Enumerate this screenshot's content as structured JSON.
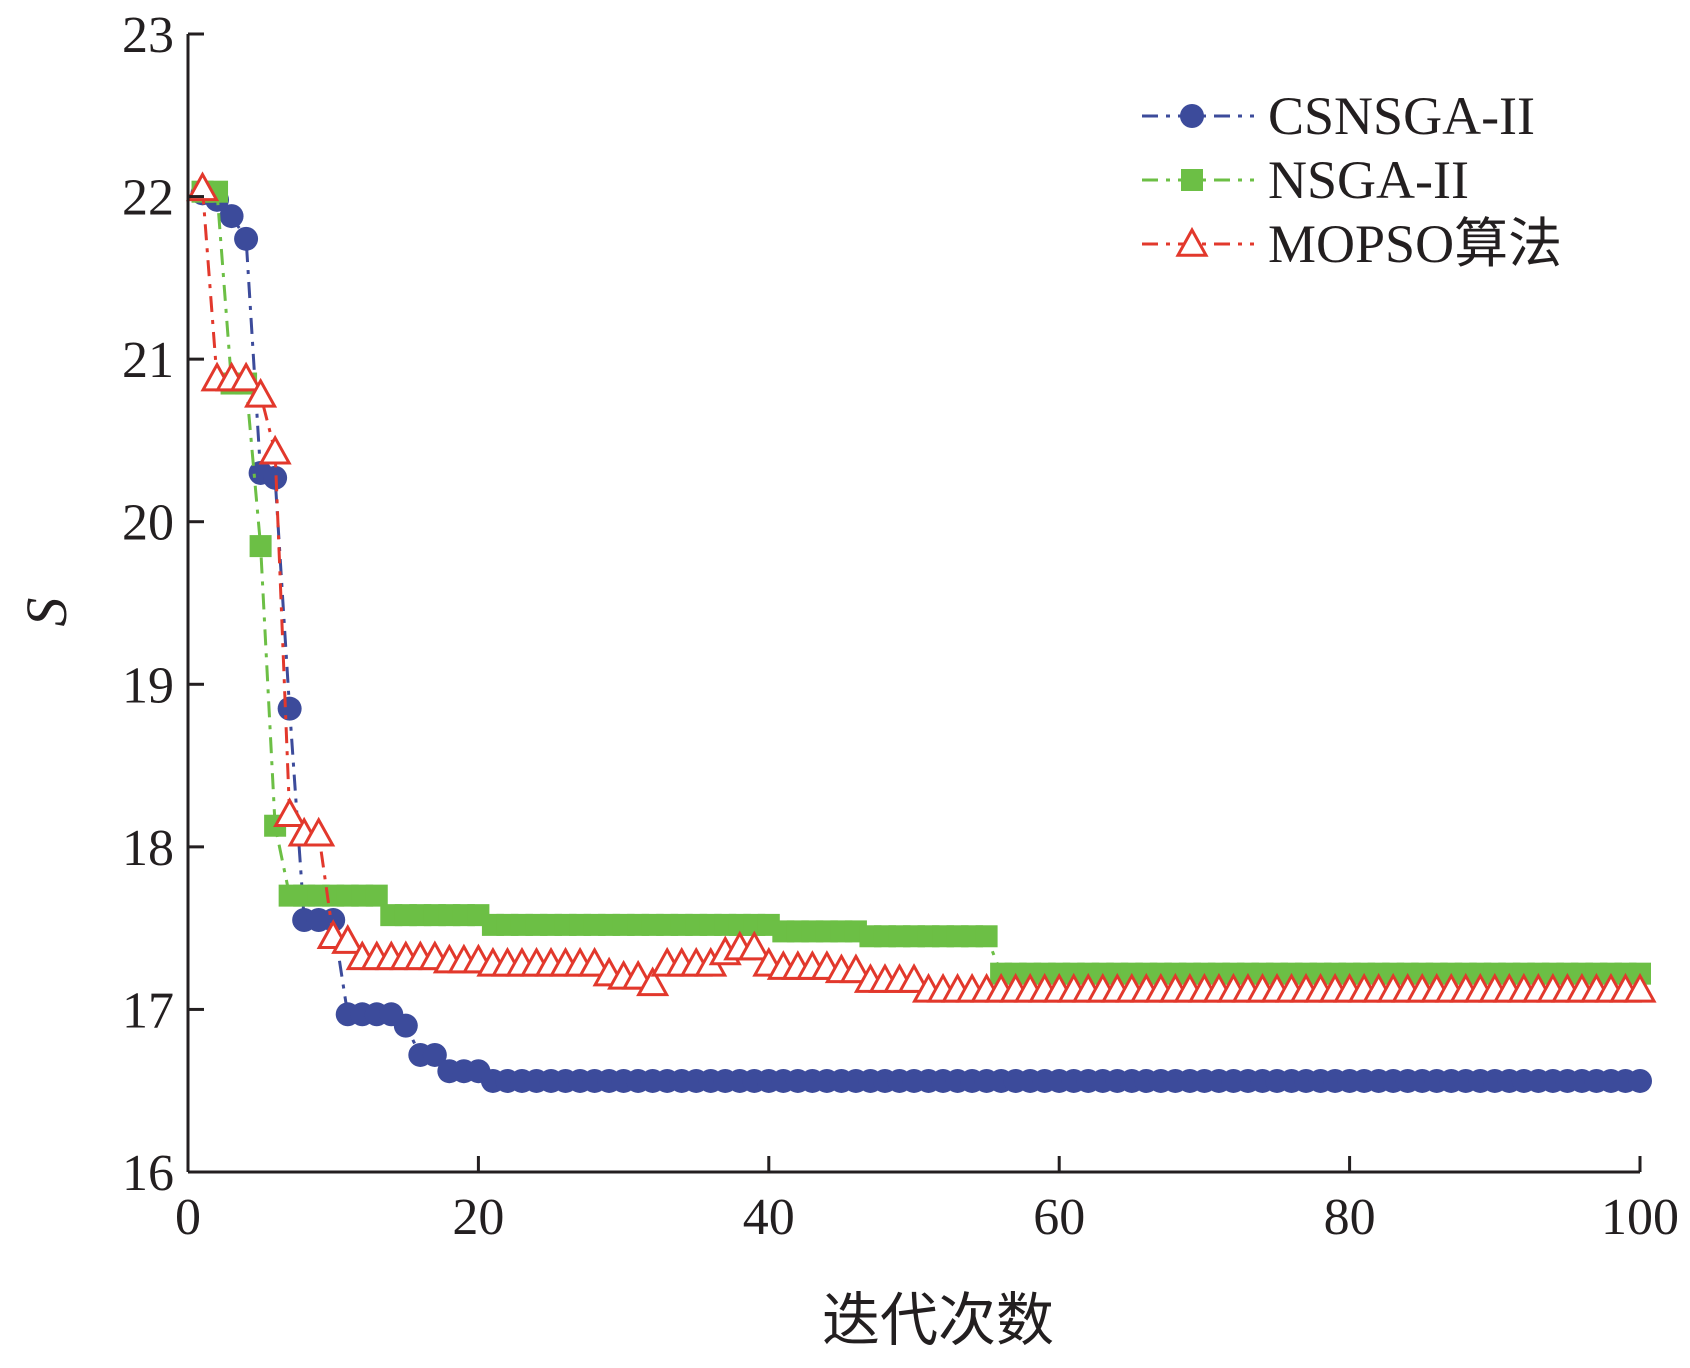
{
  "chart_data": {
    "type": "line",
    "title": "",
    "xlabel": "迭代次数",
    "ylabel": "S",
    "xlim": [
      0,
      100
    ],
    "ylim": [
      16,
      23
    ],
    "xticks": [
      0,
      20,
      40,
      60,
      80,
      100
    ],
    "yticks": [
      16,
      17,
      18,
      19,
      20,
      21,
      22,
      23
    ],
    "legend_position": "top-right",
    "grid": false,
    "colors": {
      "axis": "#231f20",
      "text": "#231f20"
    },
    "x": [
      1,
      2,
      3,
      4,
      5,
      6,
      7,
      8,
      9,
      10,
      11,
      12,
      13,
      14,
      15,
      16,
      17,
      18,
      19,
      20,
      21,
      22,
      23,
      24,
      25,
      26,
      27,
      28,
      29,
      30,
      31,
      32,
      33,
      34,
      35,
      36,
      37,
      38,
      39,
      40,
      41,
      42,
      43,
      44,
      45,
      46,
      47,
      48,
      49,
      50,
      51,
      52,
      53,
      54,
      55,
      56,
      57,
      58,
      59,
      60,
      61,
      62,
      63,
      64,
      65,
      66,
      67,
      68,
      69,
      70,
      71,
      72,
      73,
      74,
      75,
      76,
      77,
      78,
      79,
      80,
      81,
      82,
      83,
      84,
      85,
      86,
      87,
      88,
      89,
      90,
      91,
      92,
      93,
      94,
      95,
      96,
      97,
      98,
      99,
      100
    ],
    "series": [
      {
        "name": "CSNSGA-II",
        "color": "#3c4b9b",
        "marker": "circle",
        "line": "dashdot",
        "values": [
          22.02,
          21.98,
          21.88,
          21.74,
          20.3,
          20.27,
          18.85,
          17.55,
          17.55,
          17.55,
          16.97,
          16.97,
          16.97,
          16.97,
          16.9,
          16.72,
          16.72,
          16.62,
          16.62,
          16.62,
          16.56,
          16.56,
          16.56,
          16.56,
          16.56,
          16.56,
          16.56,
          16.56,
          16.56,
          16.56,
          16.56,
          16.56,
          16.56,
          16.56,
          16.56,
          16.56,
          16.56,
          16.56,
          16.56,
          16.56,
          16.56,
          16.56,
          16.56,
          16.56,
          16.56,
          16.56,
          16.56,
          16.56,
          16.56,
          16.56,
          16.56,
          16.56,
          16.56,
          16.56,
          16.56,
          16.56,
          16.56,
          16.56,
          16.56,
          16.56,
          16.56,
          16.56,
          16.56,
          16.56,
          16.56,
          16.56,
          16.56,
          16.56,
          16.56,
          16.56,
          16.56,
          16.56,
          16.56,
          16.56,
          16.56,
          16.56,
          16.56,
          16.56,
          16.56,
          16.56,
          16.56,
          16.56,
          16.56,
          16.56,
          16.56,
          16.56,
          16.56,
          16.56,
          16.56,
          16.56,
          16.56,
          16.56,
          16.56,
          16.56,
          16.56,
          16.56,
          16.56,
          16.56,
          16.56,
          16.56
        ]
      },
      {
        "name": "NSGA-II",
        "color": "#6cbf45",
        "marker": "square",
        "line": "dashdot",
        "values": [
          22.03,
          22.03,
          20.85,
          20.85,
          19.85,
          18.13,
          17.7,
          17.7,
          17.7,
          17.7,
          17.7,
          17.7,
          17.7,
          17.58,
          17.58,
          17.58,
          17.58,
          17.58,
          17.58,
          17.58,
          17.52,
          17.52,
          17.52,
          17.52,
          17.52,
          17.52,
          17.52,
          17.52,
          17.52,
          17.52,
          17.52,
          17.52,
          17.52,
          17.52,
          17.52,
          17.52,
          17.52,
          17.52,
          17.52,
          17.52,
          17.48,
          17.48,
          17.48,
          17.48,
          17.48,
          17.48,
          17.45,
          17.45,
          17.45,
          17.45,
          17.45,
          17.45,
          17.45,
          17.45,
          17.45,
          17.22,
          17.22,
          17.22,
          17.22,
          17.22,
          17.22,
          17.22,
          17.22,
          17.22,
          17.22,
          17.22,
          17.22,
          17.22,
          17.22,
          17.22,
          17.22,
          17.22,
          17.22,
          17.22,
          17.22,
          17.22,
          17.22,
          17.22,
          17.22,
          17.22,
          17.22,
          17.22,
          17.22,
          17.22,
          17.22,
          17.22,
          17.22,
          17.22,
          17.22,
          17.22,
          17.22,
          17.22,
          17.22,
          17.22,
          17.22,
          17.22,
          17.22,
          17.22,
          17.22,
          17.22
        ]
      },
      {
        "name": "MOPSO算法",
        "color": "#e2382c",
        "marker": "triangle",
        "line": "dashdot",
        "values": [
          22.05,
          20.88,
          20.88,
          20.88,
          20.78,
          20.43,
          18.2,
          18.08,
          18.08,
          17.45,
          17.42,
          17.32,
          17.32,
          17.32,
          17.32,
          17.32,
          17.32,
          17.3,
          17.3,
          17.3,
          17.28,
          17.28,
          17.28,
          17.28,
          17.28,
          17.28,
          17.28,
          17.28,
          17.22,
          17.2,
          17.2,
          17.16,
          17.28,
          17.28,
          17.28,
          17.28,
          17.35,
          17.38,
          17.38,
          17.28,
          17.26,
          17.26,
          17.26,
          17.26,
          17.24,
          17.24,
          17.18,
          17.18,
          17.18,
          17.18,
          17.12,
          17.12,
          17.12,
          17.12,
          17.12,
          17.12,
          17.12,
          17.12,
          17.12,
          17.12,
          17.12,
          17.12,
          17.12,
          17.12,
          17.12,
          17.12,
          17.12,
          17.12,
          17.12,
          17.12,
          17.12,
          17.12,
          17.12,
          17.12,
          17.12,
          17.12,
          17.12,
          17.12,
          17.12,
          17.12,
          17.12,
          17.12,
          17.12,
          17.12,
          17.12,
          17.12,
          17.12,
          17.12,
          17.12,
          17.12,
          17.12,
          17.12,
          17.12,
          17.12,
          17.12,
          17.12,
          17.12,
          17.12,
          17.12,
          17.12
        ]
      }
    ]
  }
}
